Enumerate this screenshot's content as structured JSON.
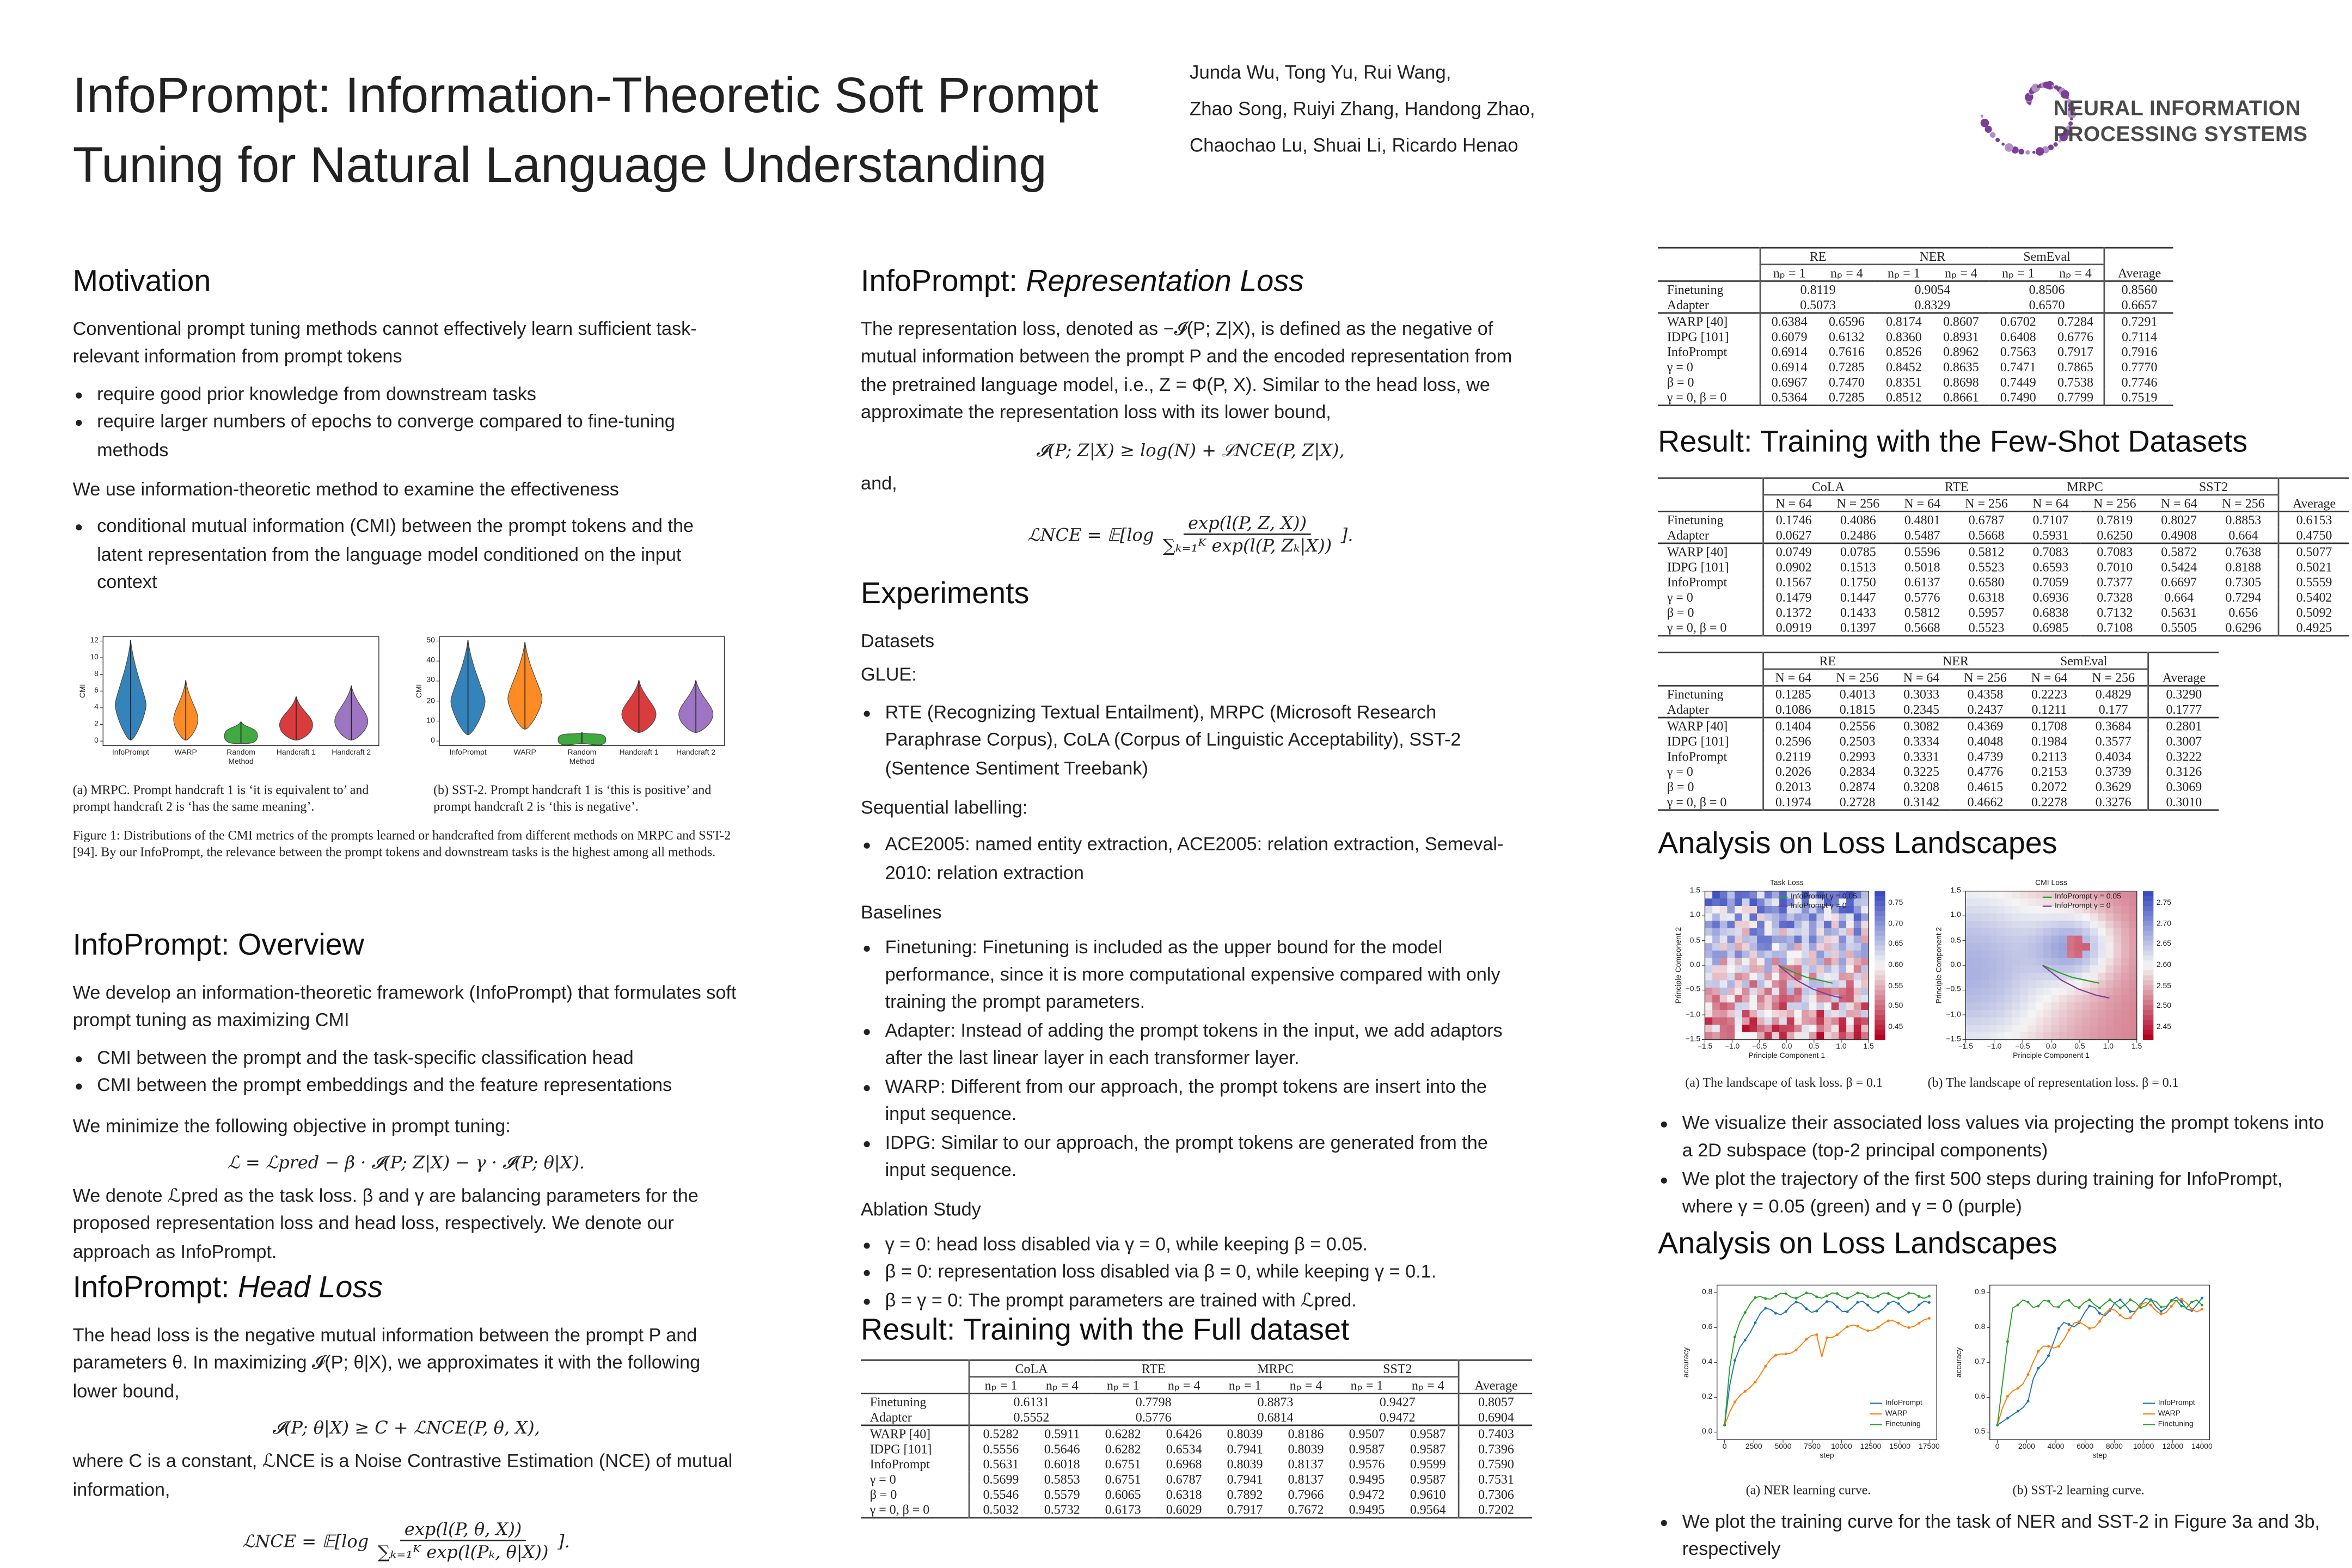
{
  "header": {
    "title": [
      "InfoPrompt: Information-Theoretic Soft Prompt",
      "Tuning for Natural Language Understanding"
    ],
    "authors": [
      "Junda Wu, Tong Yu, Rui Wang,",
      "Zhao Song, Ruiyi Zhang, Handong Zhao,",
      "Chaochao Lu, Shuai Li, Ricardo Henao"
    ],
    "logo": [
      "NEURAL INFORMATION",
      "PROCESSING SYSTEMS"
    ]
  },
  "sections": [
    {
      "title": "Motivation",
      "body": [
        {
          "p": "Conventional prompt tuning methods cannot effectively learn sufficient task-relevant information from prompt tokens"
        },
        {
          "ul": [
            "require good prior knowledge from downstream tasks",
            "require larger numbers of epochs to converge compared to fine-tuning methods"
          ]
        },
        {
          "p": "We use information-theoretic method to examine the effectiveness"
        },
        {
          "ul": [
            "conditional mutual information (CMI) between the prompt tokens and the latent representation from the language model conditioned on the input context"
          ]
        }
      ]
    },
    {
      "title": "InfoPrompt: Overview",
      "body": [
        {
          "p": "We develop an information-theoretic framework (InfoPrompt) that formulates soft prompt tuning as maximizing CMI"
        },
        {
          "ul": [
            "CMI between the prompt and the task-specific classification head",
            "CMI between the prompt embeddings and the feature representations"
          ]
        },
        {
          "p": "We minimize the following objective in prompt tuning:"
        },
        {
          "eq": "ℒ = ℒpred − β · 𝓘(P; Z|X) − γ · 𝓘(P; θ|X)."
        },
        {
          "p": "We denote ℒpred as the task loss. β and γ are balancing parameters for the proposed representation loss and head loss, respectively. We denote our approach as InfoPrompt."
        }
      ]
    },
    {
      "title": "InfoPrompt: ",
      "title_em": "Head Loss",
      "body": [
        {
          "p": "The head loss is the negative mutual information between the prompt P and parameters θ. In maximizing 𝓘(P; θ|X), we approximates it with the following lower bound,"
        },
        {
          "eq": "𝓘(P; θ|X) ≥ C + ℒNCE(P, θ, X),"
        },
        {
          "p": "where C is a constant, ℒNCE is a Noise Contrastive Estimation (NCE) of mutual information,"
        },
        {
          "frac": {
            "lhs": "ℒNCE = 𝔼[log",
            "num": "exp(l(P, θ, X))",
            "den": "∑ₖ₌₁ᴷ exp(l(Pₖ, θ|X))",
            "rhs": "]."
          }
        }
      ]
    },
    {
      "title": "InfoPrompt: ",
      "title_em": "Representation Loss",
      "body": [
        {
          "p": "The representation loss, denoted as −𝓘(P; Z|X), is defined as the negative of mutual information between the prompt P and the encoded representation from the pretrained language model, i.e., Z = Φ(P, X). Similar to the head loss, we approximate the representation loss with its lower bound,"
        },
        {
          "eq": "𝓘(P; Z|X) ≥ log(N) + ℒNCE(P, Z|X),"
        },
        {
          "p": "and,"
        },
        {
          "frac": {
            "lhs": "ℒNCE = 𝔼[log",
            "num": "exp(l(P, Z, X))",
            "den": "∑ₖ₌₁ᴷ exp(l(P, Zₖ|X))",
            "rhs": "]."
          }
        }
      ]
    },
    {
      "title": "Experiments",
      "body": [
        {
          "h": "Datasets"
        },
        {
          "p": "GLUE:"
        },
        {
          "ul": [
            "RTE (Recognizing Textual Entailment), MRPC (Microsoft Research Paraphrase Corpus), CoLA (Corpus of Linguistic Acceptability), SST-2 (Sentence Sentiment Treebank)"
          ]
        },
        {
          "p": "Sequential labelling:"
        },
        {
          "ul": [
            "ACE2005: named entity extraction, ACE2005: relation extraction, Semeval-2010: relation extraction"
          ]
        },
        {
          "h": "Baselines"
        },
        {
          "ul": [
            "Finetuning: Finetuning is included as the upper bound for the model performance, since it is more computational expensive compared with only training the prompt parameters.",
            "Adapter: Instead of adding the prompt tokens in the input, we add adaptors after the last linear layer in each transformer layer.",
            "WARP: Different from our approach, the prompt tokens are insert into the input sequence.",
            "IDPG: Similar to our approach, the prompt tokens are generated from the input sequence."
          ]
        },
        {
          "h": "Ablation Study"
        },
        {
          "ul": [
            "γ = 0: head loss disabled via γ = 0, while keeping β = 0.05.",
            "β = 0: representation loss disabled via β = 0, while keeping γ = 0.1.",
            "β = γ = 0: The prompt parameters are trained with ℒpred."
          ]
        }
      ]
    },
    {
      "title": "Result: Training with the Full dataset"
    },
    {
      "title": "Result: Training with the Few-Shot Datasets"
    },
    {
      "title": "Analysis on Loss Landscapes",
      "body": [
        {
          "ul": [
            "We visualize their associated loss values via projecting the prompt tokens into a 2D subspace (top-2 principal components)",
            "We plot the trajectory of the first 500 steps during training for InfoPrompt, where γ = 0.05 (green) and γ = 0 (purple)"
          ]
        }
      ]
    },
    {
      "title": "Analysis on Loss Landscapes",
      "body": [
        {
          "ul": [
            "We plot the training curve for the task of NER and SST-2 in Figure 3a and 3b, respectively"
          ]
        }
      ]
    }
  ],
  "tables": [
    {
      "groups": [
        "CoLA",
        "RTE",
        "MRPC",
        "SST2"
      ],
      "subheaders": [
        "nₚ = 1",
        "nₚ = 4"
      ],
      "average_label": "Average",
      "rows": [
        {
          "label": "Finetuning",
          "values": [
            "0.6131",
            "0.7798",
            "0.8873",
            "0.9427",
            "0.8057"
          ]
        },
        {
          "label": "Adapter",
          "values": [
            "0.5552",
            "0.5776",
            "0.6814",
            "0.9472",
            "0.6904"
          ]
        },
        {
          "label": "WARP [40]",
          "values": [
            "0.5282",
            "0.5911",
            "0.6282",
            "0.6426",
            "0.8039",
            "0.8186",
            "0.9507",
            "0.9587",
            "0.7403"
          ]
        },
        {
          "label": "IDPG [101]",
          "values": [
            "0.5556",
            "0.5646",
            "0.6282",
            "0.6534",
            "0.7941",
            "0.8039",
            "0.9587",
            "0.9587",
            "0.7396"
          ]
        },
        {
          "label": "InfoPrompt",
          "values": [
            "0.5631",
            "0.6018",
            "0.6751",
            "0.6968",
            "0.8039",
            "0.8137",
            "0.9576",
            "0.9599",
            "0.7590"
          ]
        },
        {
          "label": "γ = 0",
          "values": [
            "0.5699",
            "0.5853",
            "0.6751",
            "0.6787",
            "0.7941",
            "0.8137",
            "0.9495",
            "0.9587",
            "0.7531"
          ]
        },
        {
          "label": "β = 0",
          "values": [
            "0.5546",
            "0.5579",
            "0.6065",
            "0.6318",
            "0.7892",
            "0.7966",
            "0.9472",
            "0.9610",
            "0.7306"
          ]
        },
        {
          "label": "γ = 0, β = 0",
          "values": [
            "0.5032",
            "0.5732",
            "0.6173",
            "0.6029",
            "0.7917",
            "0.7672",
            "0.9495",
            "0.9564",
            "0.7202"
          ]
        }
      ]
    },
    {
      "groups": [
        "RE",
        "NER",
        "SemEval"
      ],
      "subheaders": [
        "nₚ = 1",
        "nₚ = 4"
      ],
      "average_label": "Average",
      "rows": [
        {
          "label": "Finetuning",
          "values": [
            "0.8119",
            "0.9054",
            "0.8506",
            "0.8560"
          ]
        },
        {
          "label": "Adapter",
          "values": [
            "0.5073",
            "0.8329",
            "0.6570",
            "0.6657"
          ]
        },
        {
          "label": "WARP [40]",
          "values": [
            "0.6384",
            "0.6596",
            "0.8174",
            "0.8607",
            "0.6702",
            "0.7284",
            "0.7291"
          ]
        },
        {
          "label": "IDPG [101]",
          "values": [
            "0.6079",
            "0.6132",
            "0.8360",
            "0.8931",
            "0.6408",
            "0.6776",
            "0.7114"
          ]
        },
        {
          "label": "InfoPrompt",
          "values": [
            "0.6914",
            "0.7616",
            "0.8526",
            "0.8962",
            "0.7563",
            "0.7917",
            "0.7916"
          ]
        },
        {
          "label": "γ = 0",
          "values": [
            "0.6914",
            "0.7285",
            "0.8452",
            "0.8635",
            "0.7471",
            "0.7865",
            "0.7770"
          ]
        },
        {
          "label": "β = 0",
          "values": [
            "0.6967",
            "0.7470",
            "0.8351",
            "0.8698",
            "0.7449",
            "0.7538",
            "0.7746"
          ]
        },
        {
          "label": "γ = 0, β = 0",
          "values": [
            "0.5364",
            "0.7285",
            "0.8512",
            "0.8661",
            "0.7490",
            "0.7799",
            "0.7519"
          ]
        }
      ]
    },
    {
      "groups": [
        "CoLA",
        "RTE",
        "MRPC",
        "SST2"
      ],
      "subheaders": [
        "N = 64",
        "N = 256"
      ],
      "average_label": "Average",
      "rows": [
        {
          "label": "Finetuning",
          "values": [
            "0.1746",
            "0.4086",
            "0.4801",
            "0.6787",
            "0.7107",
            "0.7819",
            "0.8027",
            "0.8853",
            "0.6153"
          ]
        },
        {
          "label": "Adapter",
          "values": [
            "0.0627",
            "0.2486",
            "0.5487",
            "0.5668",
            "0.5931",
            "0.6250",
            "0.4908",
            "0.664",
            "0.4750"
          ]
        },
        {
          "label": "WARP [40]",
          "values": [
            "0.0749",
            "0.0785",
            "0.5596",
            "0.5812",
            "0.7083",
            "0.7083",
            "0.5872",
            "0.7638",
            "0.5077"
          ]
        },
        {
          "label": "IDPG [101]",
          "values": [
            "0.0902",
            "0.1513",
            "0.5018",
            "0.5523",
            "0.6593",
            "0.7010",
            "0.5424",
            "0.8188",
            "0.5021"
          ]
        },
        {
          "label": "InfoPrompt",
          "values": [
            "0.1567",
            "0.1750",
            "0.6137",
            "0.6580",
            "0.7059",
            "0.7377",
            "0.6697",
            "0.7305",
            "0.5559"
          ]
        },
        {
          "label": "γ = 0",
          "values": [
            "0.1479",
            "0.1447",
            "0.5776",
            "0.6318",
            "0.6936",
            "0.7328",
            "0.664",
            "0.7294",
            "0.5402"
          ]
        },
        {
          "label": "β = 0",
          "values": [
            "0.1372",
            "0.1433",
            "0.5812",
            "0.5957",
            "0.6838",
            "0.7132",
            "0.5631",
            "0.656",
            "0.5092"
          ]
        },
        {
          "label": "γ = 0, β = 0",
          "values": [
            "0.0919",
            "0.1397",
            "0.5668",
            "0.5523",
            "0.6985",
            "0.7108",
            "0.5505",
            "0.6296",
            "0.4925"
          ]
        }
      ]
    },
    {
      "groups": [
        "RE",
        "NER",
        "SemEval"
      ],
      "subheaders": [
        "N = 64",
        "N = 256"
      ],
      "average_label": "Average",
      "rows": [
        {
          "label": "Finetuning",
          "values": [
            "0.1285",
            "0.4013",
            "0.3033",
            "0.4358",
            "0.2223",
            "0.4829",
            "0.3290"
          ]
        },
        {
          "label": "Adapter",
          "values": [
            "0.1086",
            "0.1815",
            "0.2345",
            "0.2437",
            "0.1211",
            "0.177",
            "0.1777"
          ]
        },
        {
          "label": "WARP [40]",
          "values": [
            "0.1404",
            "0.2556",
            "0.3082",
            "0.4369",
            "0.1708",
            "0.3684",
            "0.2801"
          ]
        },
        {
          "label": "IDPG [101]",
          "values": [
            "0.2596",
            "0.2503",
            "0.3334",
            "0.4048",
            "0.1984",
            "0.3577",
            "0.3007"
          ]
        },
        {
          "label": "InfoPrompt",
          "values": [
            "0.2119",
            "0.2993",
            "0.3331",
            "0.4739",
            "0.2113",
            "0.4034",
            "0.3222"
          ]
        },
        {
          "label": "γ = 0",
          "values": [
            "0.2026",
            "0.2834",
            "0.3225",
            "0.4776",
            "0.2153",
            "0.3739",
            "0.3126"
          ]
        },
        {
          "label": "β = 0",
          "values": [
            "0.2013",
            "0.2874",
            "0.3208",
            "0.4615",
            "0.2072",
            "0.3629",
            "0.3069"
          ]
        },
        {
          "label": "γ = 0, β = 0",
          "values": [
            "0.1974",
            "0.2728",
            "0.3142",
            "0.4662",
            "0.2278",
            "0.3276",
            "0.3010"
          ]
        }
      ]
    }
  ],
  "figure1": {
    "panels": [
      {
        "ylabel": "CMI",
        "yticks": [
          "0",
          "2",
          "4",
          "6",
          "8",
          "10",
          "12"
        ],
        "categories": [
          "InfoPrompt",
          "WARP",
          "Random Method",
          "Handcraft 1",
          "Handcraft 2"
        ],
        "caption": "(a) MRPC. Prompt handcraft 1 is ‘it is equivalent to’ and prompt handcraft 2 is ‘has the same meaning’."
      },
      {
        "ylabel": "CMI",
        "yticks": [
          "0",
          "10",
          "20",
          "30",
          "40",
          "50"
        ],
        "categories": [
          "InfoPrompt",
          "WARP",
          "Random Method",
          "Handcraft 1",
          "Handcraft 2"
        ],
        "caption": "(b) SST-2. Prompt handcraft 1 is ‘this is positive’ and prompt handcraft 2 is ‘this is negative’."
      }
    ],
    "caption": "Figure 1: Distributions of the CMI metrics of the prompts learned or handcrafted from different methods on MRPC and SST-2 [94]. By our InfoPrompt, the relevance between the prompt tokens and downstream tasks is the highest among all methods."
  },
  "figure2": {
    "panels": [
      {
        "title": "Task Loss",
        "xlabel": "Principle Component 1",
        "ylabel": "Principle Component 2",
        "xticks": [
          "−1.5",
          "−1.0",
          "−0.5",
          "0.0",
          "0.5",
          "1.0",
          "1.5"
        ],
        "yticks": [
          "−1.5",
          "−1.0",
          "−0.5",
          "0.0",
          "0.5",
          "1.0",
          "1.5"
        ],
        "cbticks": [
          "0.45",
          "0.50",
          "0.55",
          "0.60",
          "0.65",
          "0.70",
          "0.75"
        ],
        "legend": [
          "InfoPrompt γ = 0.05",
          "InfoPrompt γ = 0"
        ],
        "caption": "(a) The landscape of task loss. β = 0.1"
      },
      {
        "title": "CMI Loss",
        "xlabel": "Principle Component 1",
        "ylabel": "Principle Component 2",
        "xticks": [
          "−1.5",
          "−1.0",
          "−0.5",
          "0.0",
          "0.5",
          "1.0",
          "1.5"
        ],
        "yticks": [
          "−1.5",
          "−1.0",
          "−0.5",
          "0.0",
          "0.5",
          "1.0",
          "1.5"
        ],
        "cbticks": [
          "2.45",
          "2.50",
          "2.55",
          "2.60",
          "2.65",
          "2.70",
          "2.75"
        ],
        "legend": [
          "InfoPrompt γ = 0.05",
          "InfoPrompt γ = 0"
        ],
        "caption": "(b) The landscape of representation loss. β = 0.1"
      }
    ]
  },
  "figure3": {
    "panels": [
      {
        "xlabel": "step",
        "ylabel": "accuracy",
        "xticks": [
          "0",
          "2500",
          "5000",
          "7500",
          "10000",
          "12500",
          "15000",
          "17500"
        ],
        "yticks": [
          "0.0",
          "0.2",
          "0.4",
          "0.6",
          "0.8"
        ],
        "legend": [
          "InfoPrompt",
          "WARP",
          "Finetuning"
        ],
        "caption": "(a) NER learning curve."
      },
      {
        "xlabel": "step",
        "ylabel": "accuracy",
        "xticks": [
          "0",
          "2000",
          "4000",
          "6000",
          "8000",
          "10000",
          "12000",
          "14000"
        ],
        "yticks": [
          "0.5",
          "0.6",
          "0.7",
          "0.8",
          "0.9"
        ],
        "legend": [
          "InfoPrompt",
          "WARP",
          "Finetuning"
        ],
        "caption": "(b) SST-2 learning curve."
      }
    ]
  }
}
